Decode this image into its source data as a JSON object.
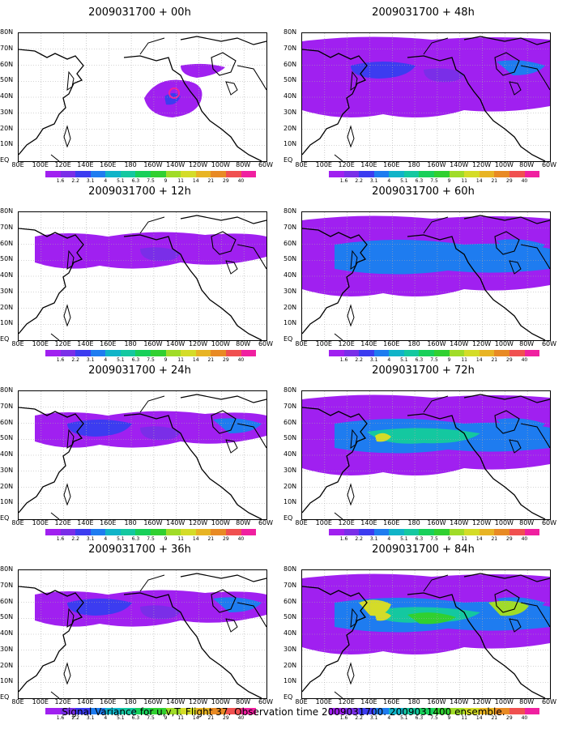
{
  "colorbar": {
    "labels": [
      "1.6",
      "2.2",
      "3.1",
      "4",
      "5.1",
      "6.3",
      "7.5",
      "9",
      "11",
      "14",
      "21",
      "29",
      "40"
    ],
    "colors": [
      "#a020f0",
      "#7a2ee8",
      "#3c3cf0",
      "#1e7cf0",
      "#10b4c8",
      "#14c8a0",
      "#18d05a",
      "#30d030",
      "#a0dc28",
      "#d4dc28",
      "#e8b424",
      "#e88a24",
      "#f05050",
      "#f020a0"
    ]
  },
  "axes": {
    "lat_labels": [
      "80N",
      "70N",
      "60N",
      "50N",
      "40N",
      "30N",
      "20N",
      "10N",
      "EQ"
    ],
    "lon_labels": [
      "80E",
      "100E",
      "120E",
      "140E",
      "160E",
      "180",
      "160W",
      "140W",
      "120W",
      "100W",
      "80W",
      "60W"
    ]
  },
  "panels": [
    {
      "title": "2009031700 + 00h"
    },
    {
      "title": "2009031700 + 48h"
    },
    {
      "title": "2009031700 + 12h"
    },
    {
      "title": "2009031700 + 60h"
    },
    {
      "title": "2009031700 + 24h"
    },
    {
      "title": "2009031700 + 72h"
    },
    {
      "title": "2009031700 + 36h"
    },
    {
      "title": "2009031700 + 84h"
    }
  ],
  "footer": "Signal Variance for u,v,T. Flight 37. Observation time 2009031700. 2009031400 ensemble."
}
